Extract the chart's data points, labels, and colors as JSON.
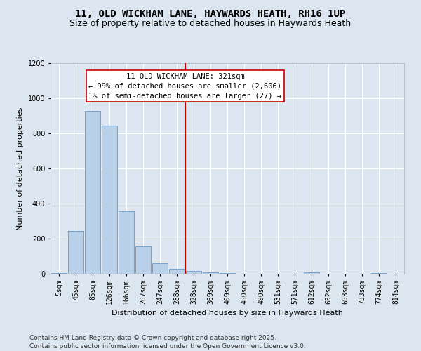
{
  "title": "11, OLD WICKHAM LANE, HAYWARDS HEATH, RH16 1UP",
  "subtitle": "Size of property relative to detached houses in Haywards Heath",
  "xlabel": "Distribution of detached houses by size in Haywards Heath",
  "ylabel": "Number of detached properties",
  "categories": [
    "5sqm",
    "45sqm",
    "85sqm",
    "126sqm",
    "166sqm",
    "207sqm",
    "247sqm",
    "288sqm",
    "328sqm",
    "369sqm",
    "409sqm",
    "450sqm",
    "490sqm",
    "531sqm",
    "571sqm",
    "612sqm",
    "652sqm",
    "693sqm",
    "733sqm",
    "774sqm",
    "814sqm"
  ],
  "values": [
    5,
    245,
    930,
    845,
    355,
    155,
    60,
    30,
    15,
    10,
    5,
    0,
    0,
    0,
    0,
    10,
    0,
    0,
    0,
    5,
    0
  ],
  "bar_color": "#b8d0e8",
  "bar_edge_color": "#6699cc",
  "vline_index": 7.5,
  "marker_label_line1": "11 OLD WICKHAM LANE: 321sqm",
  "marker_label_line2": "← 99% of detached houses are smaller (2,606)",
  "marker_label_line3": "1% of semi-detached houses are larger (27) →",
  "vline_color": "#cc0000",
  "annotation_box_color": "#ffffff",
  "annotation_box_edge": "#cc0000",
  "background_color": "#dce6f0",
  "grid_color": "#ffffff",
  "ylim": [
    0,
    1200
  ],
  "yticks": [
    0,
    200,
    400,
    600,
    800,
    1000,
    1200
  ],
  "footer": "Contains HM Land Registry data © Crown copyright and database right 2025.\nContains public sector information licensed under the Open Government Licence v3.0.",
  "title_fontsize": 10,
  "subtitle_fontsize": 9,
  "xlabel_fontsize": 8,
  "ylabel_fontsize": 8,
  "tick_fontsize": 7,
  "footer_fontsize": 6.5,
  "annot_fontsize": 7.5
}
